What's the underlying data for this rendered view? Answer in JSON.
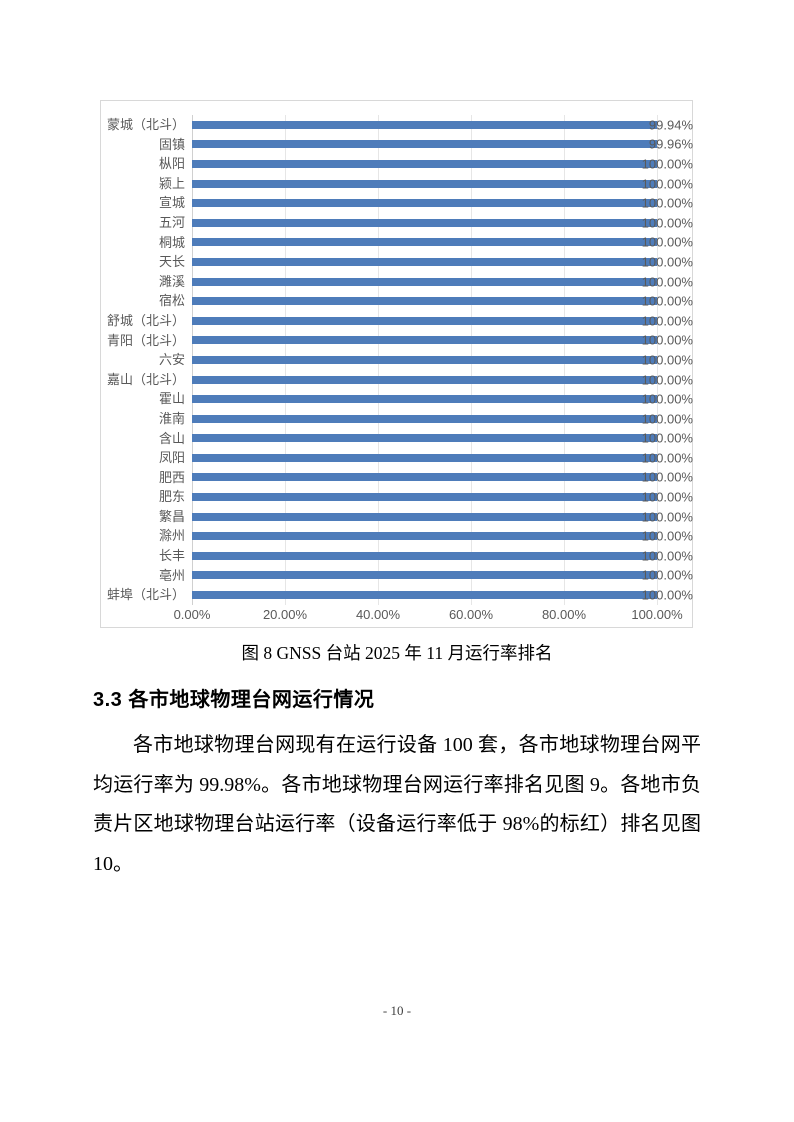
{
  "figure_caption": "图 8 GNSS 台站 2025 年 11 月运行率排名",
  "section": {
    "heading": "3.3 各市地球物理台网运行情况",
    "paragraph": "各市地球物理台网现有在运行设备 100 套，各市地球物理台网平均运行率为 99.98%。各市地球物理台网运行率排名见图 9。各地市负责片区地球物理台站运行率（设备运行率低于 98%的标红）排名见图 10。"
  },
  "page": {
    "number_label": "- 10 -"
  },
  "chart_data": {
    "type": "bar",
    "orientation": "horizontal",
    "title": "",
    "xlabel": "",
    "ylabel": "",
    "xlim": [
      0,
      100
    ],
    "grid": true,
    "legend": "none",
    "categories": [
      "蒙城（北斗）",
      "固镇",
      "枞阳",
      "颍上",
      "宣城",
      "五河",
      "桐城",
      "天长",
      "濉溪",
      "宿松",
      "舒城（北斗）",
      "青阳（北斗）",
      "六安",
      "嘉山（北斗）",
      "霍山",
      "淮南",
      "含山",
      "凤阳",
      "肥西",
      "肥东",
      "繁昌",
      "滁州",
      "长丰",
      "亳州",
      "蚌埠（北斗）"
    ],
    "values": [
      99.94,
      99.96,
      100,
      100,
      100,
      100,
      100,
      100,
      100,
      100,
      100,
      100,
      100,
      100,
      100,
      100,
      100,
      100,
      100,
      100,
      100,
      100,
      100,
      100,
      100
    ],
    "value_labels": [
      "99.94%",
      "99.96%",
      "100.00%",
      "100.00%",
      "100.00%",
      "100.00%",
      "100.00%",
      "100.00%",
      "100.00%",
      "100.00%",
      "100.00%",
      "100.00%",
      "100.00%",
      "100.00%",
      "100.00%",
      "100.00%",
      "100.00%",
      "100.00%",
      "100.00%",
      "100.00%",
      "100.00%",
      "100.00%",
      "100.00%",
      "100.00%",
      "100.00%"
    ],
    "x_ticks": [
      "0.00%",
      "20.00%",
      "40.00%",
      "60.00%",
      "80.00%",
      "100.00%"
    ],
    "colors": {
      "bar": "#4e7cba",
      "gridline": "#e6e6e6",
      "axis_line": "#d0d0d0",
      "label_text": "#595959",
      "frame_border": "#d8d8d8"
    }
  }
}
